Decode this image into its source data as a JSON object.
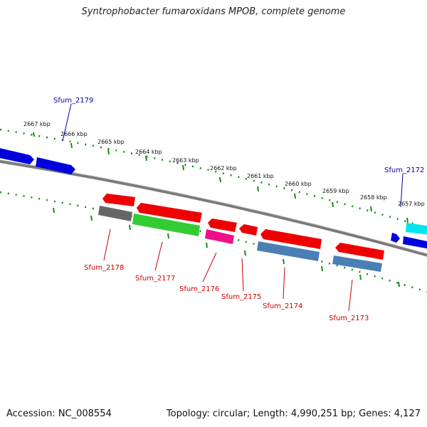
{
  "title": "Syntrophobacter fumaroxidans MPOB, complete genome",
  "footer": {
    "accession": "Accession: NC_008554",
    "topology": "Topology: circular; Length: 4,990,251 bp; Genes: 4,127"
  },
  "kbp_labels": [
    "2667 kbp",
    "2666 kbp",
    "2665 kbp",
    "2664 kbp",
    "2663 kbp",
    "2662 kbp",
    "2661 kbp",
    "2660 kbp",
    "2659 kbp",
    "2658 kbp",
    "2657 kbp"
  ],
  "gene_labels_top": [
    "Sfum_2179",
    "Sfum_2172"
  ],
  "gene_labels_bottom": [
    "Sfum_2178",
    "Sfum_2177",
    "Sfum_2176",
    "Sfum_2175",
    "Sfum_2174",
    "Sfum_2173"
  ],
  "colors": {
    "forward_label": "#0000aa",
    "reverse_label": "#cc0000",
    "backbone": "#808080",
    "tick": "#1a8a1a",
    "red_gene": "#ee0000",
    "blue_gene": "#0000dd",
    "steel_gene": "#4a7fb5",
    "green_gene": "#33cc33",
    "pink_gene": "#ee1188",
    "gray_gene": "#666666",
    "cyan_gene": "#00e5ee"
  }
}
